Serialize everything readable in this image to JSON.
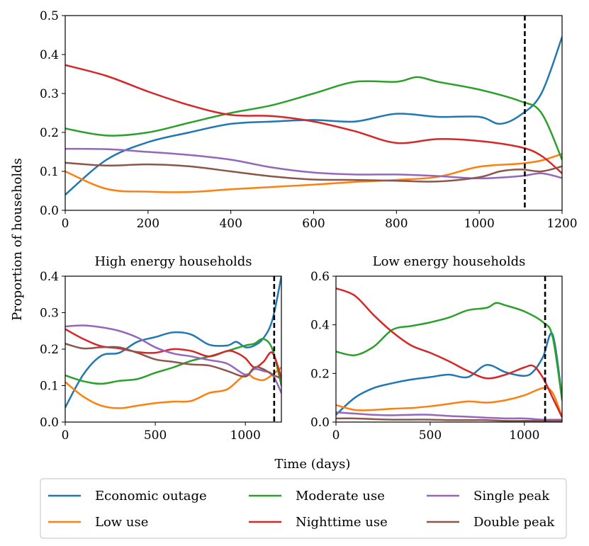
{
  "colors": {
    "economic_outage": "#1f77b4",
    "low_use": "#ff7f0e",
    "moderate_use": "#2ca02c",
    "nighttime_use": "#d62728",
    "single_peak": "#9467bd",
    "double_peak": "#8c564b"
  },
  "legend": [
    {
      "key": "economic_outage",
      "label": "Economic outage"
    },
    {
      "key": "low_use",
      "label": "Low use"
    },
    {
      "key": "moderate_use",
      "label": "Moderate use"
    },
    {
      "key": "nighttime_use",
      "label": "Nighttime use"
    },
    {
      "key": "single_peak",
      "label": "Single peak"
    },
    {
      "key": "double_peak",
      "label": "Double peak"
    }
  ],
  "shared_ylabel": "Proportion of households",
  "shared_xlabel": "Time (days)",
  "chart_data": [
    {
      "id": "all",
      "type": "line",
      "title": "",
      "xlim": [
        0,
        1200
      ],
      "ylim": [
        0,
        0.5
      ],
      "xticks": [
        0,
        200,
        400,
        600,
        800,
        1000,
        1200
      ],
      "xtick_labels": [
        "0",
        "200",
        "400",
        "600",
        "800",
        "1000",
        "1200"
      ],
      "yticks": [
        0,
        0.1,
        0.2,
        0.3,
        0.4,
        0.5
      ],
      "ytick_labels": [
        "0.0",
        "0.1",
        "0.2",
        "0.3",
        "0.4",
        "0.5"
      ],
      "vline_x": 1110,
      "series": [
        {
          "key": "economic_outage",
          "x": [
            0,
            100,
            200,
            300,
            400,
            500,
            600,
            700,
            800,
            900,
            1000,
            1050,
            1100,
            1150,
            1200
          ],
          "y": [
            0.04,
            0.13,
            0.175,
            0.2,
            0.222,
            0.228,
            0.232,
            0.228,
            0.248,
            0.24,
            0.24,
            0.222,
            0.245,
            0.3,
            0.445
          ]
        },
        {
          "key": "low_use",
          "x": [
            0,
            100,
            200,
            300,
            400,
            500,
            600,
            700,
            800,
            900,
            1000,
            1100,
            1150,
            1200
          ],
          "y": [
            0.1,
            0.055,
            0.048,
            0.047,
            0.054,
            0.06,
            0.066,
            0.073,
            0.078,
            0.086,
            0.112,
            0.12,
            0.128,
            0.145
          ]
        },
        {
          "key": "moderate_use",
          "x": [
            0,
            100,
            200,
            300,
            400,
            500,
            600,
            700,
            800,
            850,
            900,
            1000,
            1100,
            1150,
            1200
          ],
          "y": [
            0.21,
            0.192,
            0.2,
            0.225,
            0.25,
            0.27,
            0.3,
            0.33,
            0.33,
            0.342,
            0.33,
            0.31,
            0.28,
            0.25,
            0.13
          ]
        },
        {
          "key": "nighttime_use",
          "x": [
            0,
            100,
            200,
            300,
            400,
            500,
            600,
            700,
            800,
            900,
            1000,
            1100,
            1150,
            1200
          ],
          "y": [
            0.373,
            0.345,
            0.305,
            0.27,
            0.245,
            0.242,
            0.228,
            0.203,
            0.173,
            0.183,
            0.178,
            0.162,
            0.14,
            0.095
          ]
        },
        {
          "key": "single_peak",
          "x": [
            0,
            100,
            200,
            300,
            400,
            500,
            600,
            700,
            800,
            900,
            1000,
            1100,
            1150,
            1200
          ],
          "y": [
            0.158,
            0.157,
            0.15,
            0.142,
            0.13,
            0.11,
            0.097,
            0.092,
            0.092,
            0.088,
            0.082,
            0.088,
            0.095,
            0.083
          ]
        },
        {
          "key": "double_peak",
          "x": [
            0,
            100,
            200,
            300,
            400,
            500,
            600,
            700,
            800,
            900,
            1000,
            1050,
            1100,
            1150,
            1200
          ],
          "y": [
            0.122,
            0.115,
            0.118,
            0.113,
            0.1,
            0.087,
            0.079,
            0.078,
            0.076,
            0.074,
            0.085,
            0.1,
            0.105,
            0.1,
            0.113
          ]
        }
      ]
    },
    {
      "id": "high",
      "type": "line",
      "title": "High energy households",
      "xlim": [
        0,
        1200
      ],
      "ylim": [
        0,
        0.4
      ],
      "xticks": [
        0,
        500,
        1000
      ],
      "xtick_labels": [
        "0",
        "500",
        "1000"
      ],
      "yticks": [
        0,
        0.1,
        0.2,
        0.3,
        0.4
      ],
      "ytick_labels": [
        "0.0",
        "0.1",
        "0.2",
        "0.3",
        "0.4"
      ],
      "vline_x": 1160,
      "series": [
        {
          "key": "economic_outage",
          "x": [
            0,
            100,
            200,
            300,
            400,
            500,
            600,
            700,
            800,
            900,
            950,
            1000,
            1050,
            1100,
            1150,
            1200
          ],
          "y": [
            0.04,
            0.13,
            0.182,
            0.19,
            0.22,
            0.233,
            0.246,
            0.24,
            0.212,
            0.21,
            0.22,
            0.205,
            0.21,
            0.23,
            0.28,
            0.4
          ]
        },
        {
          "key": "low_use",
          "x": [
            0,
            100,
            200,
            300,
            400,
            500,
            600,
            700,
            800,
            900,
            1000,
            1050,
            1100,
            1150,
            1200
          ],
          "y": [
            0.11,
            0.07,
            0.045,
            0.038,
            0.045,
            0.052,
            0.056,
            0.058,
            0.08,
            0.09,
            0.13,
            0.12,
            0.115,
            0.13,
            0.15
          ]
        },
        {
          "key": "moderate_use",
          "x": [
            0,
            100,
            200,
            300,
            400,
            500,
            600,
            700,
            800,
            900,
            1000,
            1050,
            1100,
            1150,
            1200
          ],
          "y": [
            0.128,
            0.112,
            0.105,
            0.113,
            0.118,
            0.135,
            0.15,
            0.168,
            0.18,
            0.195,
            0.21,
            0.215,
            0.228,
            0.2,
            0.1
          ]
        },
        {
          "key": "nighttime_use",
          "x": [
            0,
            100,
            200,
            300,
            400,
            500,
            600,
            700,
            800,
            900,
            950,
            1000,
            1050,
            1100,
            1150,
            1200
          ],
          "y": [
            0.255,
            0.228,
            0.208,
            0.202,
            0.192,
            0.19,
            0.2,
            0.195,
            0.18,
            0.195,
            0.19,
            0.175,
            0.15,
            0.165,
            0.19,
            0.12
          ]
        },
        {
          "key": "single_peak",
          "x": [
            0,
            100,
            200,
            300,
            400,
            500,
            600,
            700,
            800,
            900,
            1000,
            1050,
            1100,
            1150,
            1200
          ],
          "y": [
            0.262,
            0.265,
            0.26,
            0.25,
            0.232,
            0.205,
            0.188,
            0.18,
            0.17,
            0.16,
            0.13,
            0.145,
            0.14,
            0.13,
            0.08
          ]
        },
        {
          "key": "double_peak",
          "x": [
            0,
            100,
            200,
            300,
            400,
            500,
            600,
            700,
            800,
            900,
            1000,
            1050,
            1100,
            1150,
            1200
          ],
          "y": [
            0.215,
            0.202,
            0.205,
            0.205,
            0.19,
            0.172,
            0.165,
            0.158,
            0.155,
            0.14,
            0.125,
            0.15,
            0.145,
            0.13,
            0.12
          ]
        }
      ]
    },
    {
      "id": "low",
      "type": "line",
      "title": "Low energy households",
      "xlim": [
        0,
        1200
      ],
      "ylim": [
        0,
        0.6
      ],
      "xticks": [
        0,
        500,
        1000
      ],
      "xtick_labels": [
        "0",
        "500",
        "1000"
      ],
      "yticks": [
        0,
        0.2,
        0.4,
        0.6
      ],
      "ytick_labels": [
        "0.0",
        "0.2",
        "0.4",
        "0.6"
      ],
      "vline_x": 1110,
      "series": [
        {
          "key": "economic_outage",
          "x": [
            0,
            100,
            200,
            300,
            400,
            500,
            600,
            700,
            800,
            900,
            1000,
            1050,
            1100,
            1150,
            1200
          ],
          "y": [
            0.03,
            0.1,
            0.14,
            0.16,
            0.175,
            0.185,
            0.195,
            0.185,
            0.235,
            0.205,
            0.19,
            0.21,
            0.27,
            0.36,
            0.1
          ]
        },
        {
          "key": "low_use",
          "x": [
            0,
            100,
            200,
            300,
            400,
            500,
            600,
            700,
            800,
            900,
            1000,
            1100,
            1150,
            1200
          ],
          "y": [
            0.07,
            0.05,
            0.05,
            0.055,
            0.058,
            0.065,
            0.075,
            0.085,
            0.08,
            0.09,
            0.11,
            0.14,
            0.12,
            0.02
          ]
        },
        {
          "key": "moderate_use",
          "x": [
            0,
            100,
            200,
            300,
            400,
            500,
            600,
            700,
            800,
            850,
            900,
            1000,
            1100,
            1150,
            1200
          ],
          "y": [
            0.29,
            0.275,
            0.31,
            0.38,
            0.395,
            0.41,
            0.43,
            0.46,
            0.47,
            0.49,
            0.48,
            0.455,
            0.41,
            0.35,
            0.09
          ]
        },
        {
          "key": "nighttime_use",
          "x": [
            0,
            100,
            200,
            300,
            400,
            500,
            600,
            700,
            800,
            900,
            1000,
            1050,
            1100,
            1150,
            1200
          ],
          "y": [
            0.55,
            0.52,
            0.44,
            0.37,
            0.315,
            0.285,
            0.25,
            0.21,
            0.18,
            0.195,
            0.225,
            0.23,
            0.18,
            0.1,
            0.02
          ]
        },
        {
          "key": "single_peak",
          "x": [
            0,
            100,
            200,
            300,
            400,
            500,
            600,
            700,
            800,
            900,
            1000,
            1100,
            1200
          ],
          "y": [
            0.04,
            0.035,
            0.03,
            0.028,
            0.03,
            0.03,
            0.025,
            0.022,
            0.018,
            0.015,
            0.015,
            0.01,
            0.01
          ]
        },
        {
          "key": "double_peak",
          "x": [
            0,
            100,
            200,
            300,
            400,
            500,
            600,
            700,
            800,
            900,
            1000,
            1100,
            1200
          ],
          "y": [
            0.015,
            0.015,
            0.012,
            0.01,
            0.01,
            0.01,
            0.008,
            0.008,
            0.008,
            0.005,
            0.005,
            0.005,
            0.005
          ]
        }
      ]
    }
  ]
}
